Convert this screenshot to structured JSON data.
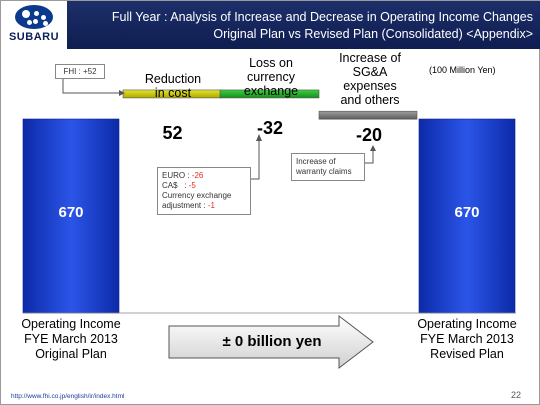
{
  "header": {
    "logo_text": "SUBARU",
    "title_line1": "Full Year : Analysis of Increase and Decrease in Operating Income Changes",
    "title_line2": "Original Plan vs Revised Plan (Consolidated) <Appendix>"
  },
  "unit_label": "(100 Million Yen)",
  "fhi_note": "FHI : +52",
  "colors": {
    "header_bg": "#132460",
    "blue_bar": "#1a3fcc",
    "yellow_bar": "#c8c400",
    "green_bar": "#22a82a",
    "gray_bar": "#7a7a7a"
  },
  "step_labels": {
    "reduction": [
      "Reduction",
      "in cost"
    ],
    "currency": [
      "Loss on",
      "currency",
      "exchange"
    ],
    "sga": [
      "Increase of",
      "SG&A",
      "expenses",
      "and others"
    ]
  },
  "currency_details": {
    "euro_label": "EURO : ",
    "euro_value": "-26",
    "cad_label": "CA$   : ",
    "cad_value": "-5",
    "adj_label_1": "Currency exchange",
    "adj_label_2": "adjustment : ",
    "adj_value": "-1"
  },
  "warranty_note": [
    "Increase of",
    "warranty claims"
  ],
  "bottom": {
    "left": [
      "Operating Income",
      "FYE March 2013",
      "Original Plan"
    ],
    "right": [
      "Operating Income",
      "FYE March 2013",
      "Revised Plan"
    ],
    "arrow_text": "± 0 billion yen"
  },
  "footer": {
    "url": "http://www.fhi.co.jp/english/ir/index.html",
    "page": "22"
  },
  "chart_data": {
    "type": "bar",
    "categories": [
      "Operating Income FYE March 2013 Original Plan",
      "Reduction in cost",
      "Loss on currency exchange",
      "Increase of SG&A expenses and others",
      "Operating Income FYE March 2013 Revised Plan"
    ],
    "values": [
      670,
      52,
      -32,
      -20,
      670
    ],
    "value_labels": [
      "670",
      "52",
      "-32",
      "-20",
      "670"
    ],
    "series": [
      {
        "name": "",
        "values": [
          670,
          52,
          -32,
          -20,
          670
        ]
      }
    ],
    "title": "",
    "xlabel": "",
    "ylabel": "",
    "bar_colors": [
      "#1a3fcc",
      "#c8c400",
      "#22a82a",
      "#7a7a7a",
      "#1a3fcc"
    ],
    "grid": false
  }
}
